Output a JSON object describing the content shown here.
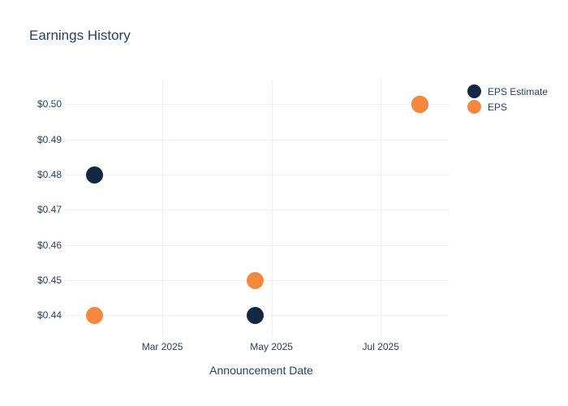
{
  "chart_data": {
    "type": "scatter",
    "title": "Earnings History",
    "xlabel": "Announcement Date",
    "grid": true,
    "legend_position": "right-top",
    "colors": {
      "text": "#2a3f5f",
      "gridline": "#edf0f7",
      "background": "#ffffff"
    },
    "x_axis": {
      "type": "date",
      "range": [
        "2025-01-06",
        "2025-08-08"
      ],
      "ticks": [
        {
          "value": "2025-03-01",
          "label": "Mar 2025"
        },
        {
          "value": "2025-05-01",
          "label": "May 2025"
        },
        {
          "value": "2025-07-01",
          "label": "Jul 2025"
        }
      ]
    },
    "y_axis": {
      "range": [
        0.435,
        0.507
      ],
      "ticks": [
        {
          "value": 0.5,
          "label": "$0.50"
        },
        {
          "value": 0.49,
          "label": "$0.49"
        },
        {
          "value": 0.48,
          "label": "$0.48"
        },
        {
          "value": 0.47,
          "label": "$0.47"
        },
        {
          "value": 0.46,
          "label": "$0.46"
        },
        {
          "value": 0.45,
          "label": "$0.45"
        },
        {
          "value": 0.44,
          "label": "$0.44"
        }
      ]
    },
    "series": [
      {
        "name": "EPS Estimate",
        "color": "#142740",
        "marker_size": 21,
        "points": [
          {
            "x": "2025-01-22",
            "y": 0.48
          },
          {
            "x": "2025-04-22",
            "y": 0.44
          },
          {
            "x": "2025-07-23",
            "y": 0.5
          }
        ]
      },
      {
        "name": "EPS",
        "color": "#f5873e",
        "marker_size": 21,
        "points": [
          {
            "x": "2025-01-22",
            "y": 0.44
          },
          {
            "x": "2025-04-22",
            "y": 0.45
          },
          {
            "x": "2025-07-23",
            "y": 0.5
          }
        ]
      }
    ]
  }
}
